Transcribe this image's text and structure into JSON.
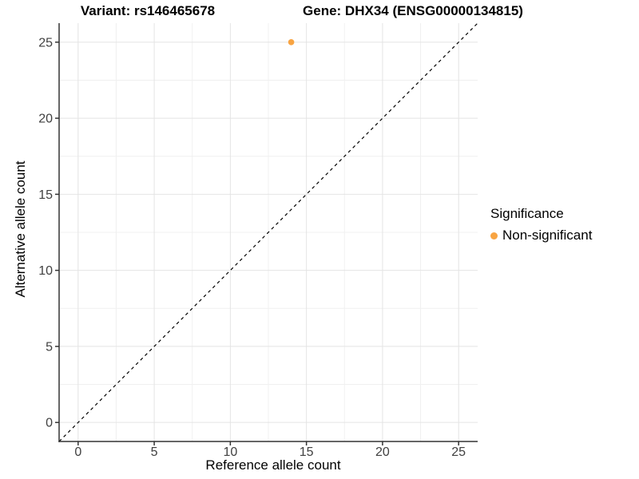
{
  "titles": {
    "variant": "Variant: rs146465678",
    "gene": "Gene: DHX34 (ENSG00000134815)"
  },
  "legend": {
    "title": "Significance",
    "items": [
      {
        "label": "Non-significant",
        "color": "#F8A442"
      }
    ]
  },
  "colors": {
    "point_orange": "#F8A442",
    "grid_major": "#E4E4E4",
    "grid_minor": "#F0F0F0",
    "axis_line": "#333333",
    "tick_text": "#404040",
    "reference_line": "#000000"
  },
  "chart_data": {
    "type": "scatter",
    "title": "",
    "xlabel": "Reference allele count",
    "ylabel": "Alternative allele count",
    "xlim": [
      -1.25,
      26.25
    ],
    "ylim": [
      -1.25,
      26.25
    ],
    "x_ticks": [
      0,
      5,
      10,
      15,
      20,
      25
    ],
    "y_ticks": [
      0,
      5,
      10,
      15,
      20,
      25
    ],
    "x_minor_ticks": [
      2.5,
      7.5,
      12.5,
      17.5,
      22.5
    ],
    "y_minor_ticks": [
      2.5,
      7.5,
      12.5,
      17.5,
      22.5
    ],
    "grid": true,
    "legend_position": "right",
    "series": [
      {
        "name": "Non-significant",
        "color": "#F8A442",
        "points": [
          {
            "x": 14,
            "y": 25
          }
        ]
      }
    ],
    "reference_line": {
      "type": "identity",
      "slope": 1,
      "intercept": 0,
      "style": "dashed",
      "color": "#000000"
    }
  }
}
